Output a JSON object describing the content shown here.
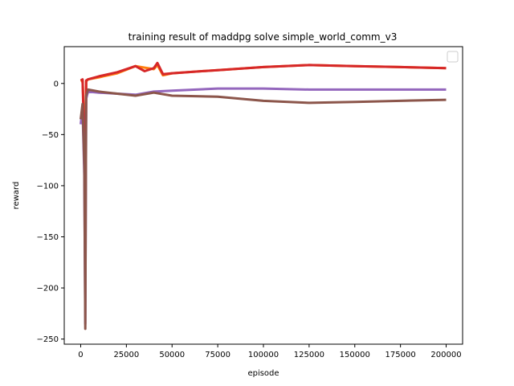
{
  "chart_data": {
    "type": "line",
    "title": "training result of maddpg solve simple_world_comm_v3",
    "xlabel": "episode",
    "ylabel": "reward",
    "xlim": [
      -9000,
      209000
    ],
    "ylim": [
      -255,
      36
    ],
    "x_ticks": [
      0,
      25000,
      50000,
      75000,
      100000,
      125000,
      150000,
      175000,
      200000
    ],
    "x_tick_labels": [
      "0",
      "25000",
      "50000",
      "75000",
      "100000",
      "125000",
      "150000",
      "175000",
      "200000"
    ],
    "y_ticks": [
      0,
      -50,
      -100,
      -150,
      -200,
      -250
    ],
    "y_tick_labels": [
      "0",
      "−50",
      "−100",
      "−150",
      "−200",
      "−250"
    ],
    "grid": false,
    "legend": "top-right (empty)",
    "series": [
      {
        "color": "#ff7f0e",
        "x": [
          0,
          1000,
          2000,
          2500,
          3000,
          4000,
          10000,
          20000,
          30000,
          40000,
          42000,
          45000,
          50000,
          75000,
          100000,
          125000,
          150000,
          175000,
          200000
        ],
        "y": [
          2,
          3,
          -40,
          -150,
          2,
          4,
          6,
          10,
          17,
          14,
          18,
          8,
          10,
          13,
          16,
          18,
          17,
          16,
          15
        ]
      },
      {
        "color": "#d62728",
        "x": [
          0,
          1000,
          2000,
          2500,
          3000,
          4000,
          10000,
          20000,
          30000,
          35000,
          40000,
          42000,
          45000,
          50000,
          75000,
          100000,
          125000,
          150000,
          175000,
          200000
        ],
        "y": [
          3,
          4,
          -60,
          -175,
          3,
          4,
          7,
          11,
          17,
          12,
          15,
          20,
          9,
          10,
          13,
          16,
          18,
          17,
          16,
          15
        ]
      },
      {
        "color": "#9467bd",
        "x": [
          0,
          1000,
          2000,
          2500,
          3000,
          4000,
          10000,
          20000,
          30000,
          40000,
          50000,
          75000,
          100000,
          125000,
          150000,
          175000,
          200000
        ],
        "y": [
          -40,
          -25,
          -90,
          -235,
          -15,
          -8,
          -9,
          -10,
          -11,
          -8,
          -7,
          -5,
          -5,
          -6,
          -6,
          -6,
          -6
        ]
      },
      {
        "color": "#8c564b",
        "x": [
          0,
          1000,
          2000,
          2500,
          3000,
          4000,
          10000,
          20000,
          30000,
          40000,
          50000,
          75000,
          100000,
          125000,
          150000,
          175000,
          200000
        ],
        "y": [
          -35,
          -20,
          -80,
          -240,
          -12,
          -6,
          -8,
          -10,
          -12,
          -9,
          -12,
          -13,
          -17,
          -19,
          -18,
          -17,
          -16
        ]
      }
    ]
  }
}
